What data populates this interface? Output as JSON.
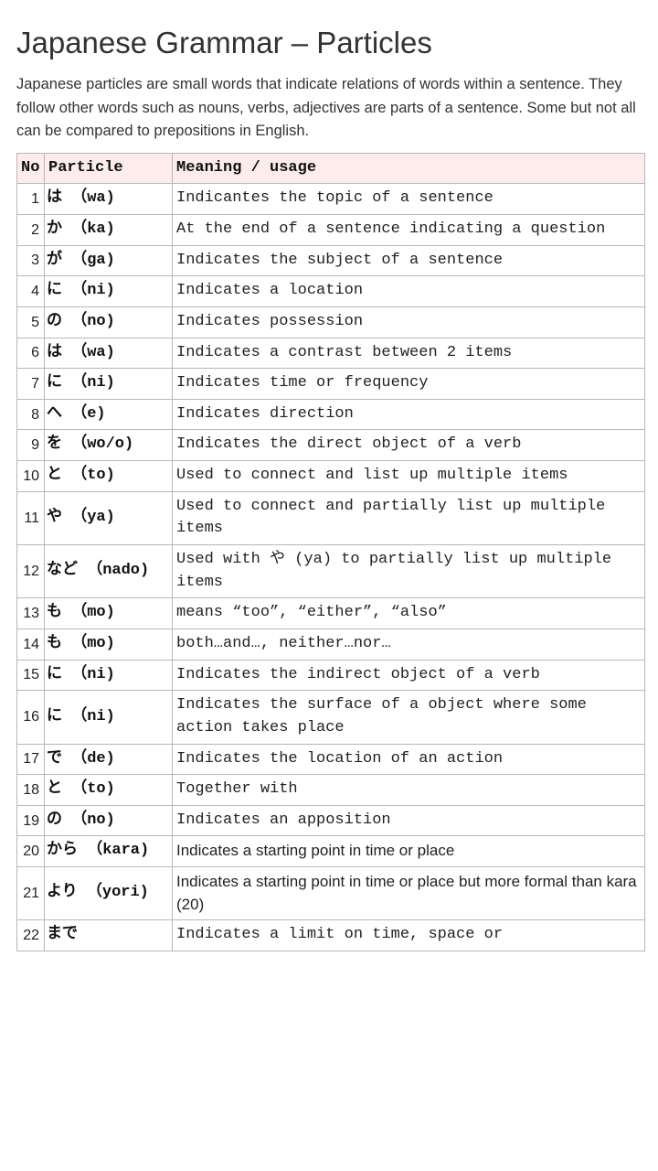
{
  "title": "Japanese Grammar – Particles",
  "intro": "Japanese particles are small words that indicate relations of words within a sentence. They follow other words such as nouns, verbs, adjectives are parts of a sentence. Some but not all can be compared to prepositions in English.",
  "columns": {
    "no": "No",
    "particle": "Particle",
    "meaning": "Meaning / usage"
  },
  "rows": [
    {
      "no": "1",
      "particle": "は （wa)",
      "meaning": "Indicantes the topic of a sentence"
    },
    {
      "no": "2",
      "particle": "か （ka)",
      "meaning": "At the end of a sentence indicating a question"
    },
    {
      "no": "3",
      "particle": "が （ga)",
      "meaning": "Indicates the subject of a sentence"
    },
    {
      "no": "4",
      "particle": "に （ni)",
      "meaning": "Indicates a location"
    },
    {
      "no": "5",
      "particle": "の （no)",
      "meaning": "Indicates possession"
    },
    {
      "no": "6",
      "particle": "は （wa)",
      "meaning": "Indicates a contrast between 2 items"
    },
    {
      "no": "7",
      "particle": "に （ni)",
      "meaning": "Indicates time or frequency"
    },
    {
      "no": "8",
      "particle": "へ （e)",
      "meaning": "Indicates direction"
    },
    {
      "no": "9",
      "particle": "を  （wo/o)",
      "meaning": "Indicates the direct object of a verb"
    },
    {
      "no": "10",
      "particle": "と （to)",
      "meaning": "Used to connect and list up multiple items"
    },
    {
      "no": "11",
      "particle": "や （ya)",
      "meaning": "Used to connect and partially list up multiple items"
    },
    {
      "no": "12",
      "particle": "など （nado)",
      "meaning": "Used with や (ya) to partially list up multiple items"
    },
    {
      "no": "13",
      "particle": "も （mo)",
      "meaning": "means “too”, “either”, “also”"
    },
    {
      "no": "14",
      "particle": "も （mo)",
      "meaning": "both…and…, neither…nor…"
    },
    {
      "no": "15",
      "particle": "に （ni)",
      "meaning": "Indicates the indirect object of a verb"
    },
    {
      "no": "16",
      "particle": "に （ni)",
      "meaning": "Indicates the surface of a object where some action takes place"
    },
    {
      "no": "17",
      "particle": "で （de)",
      "meaning": "Indicates the location of an action"
    },
    {
      "no": "18",
      "particle": "と （to)",
      "meaning": "Together with"
    },
    {
      "no": "19",
      "particle": "の （no)",
      "meaning": "Indicates an apposition"
    },
    {
      "no": "20",
      "particle": "から （kara)",
      "meaning": "Indicates a starting point in time or place",
      "sans": true
    },
    {
      "no": "21",
      "particle": "より （yori)",
      "meaning": "Indicates a starting point in time or place but more formal than kara (20)",
      "sans": true
    },
    {
      "no": "22",
      "particle": "まで",
      "meaning": "Indicates a limit on time, space or"
    }
  ],
  "colors": {
    "header_bg": "#fdecec",
    "border": "#b8b8b8",
    "text": "#222222"
  }
}
